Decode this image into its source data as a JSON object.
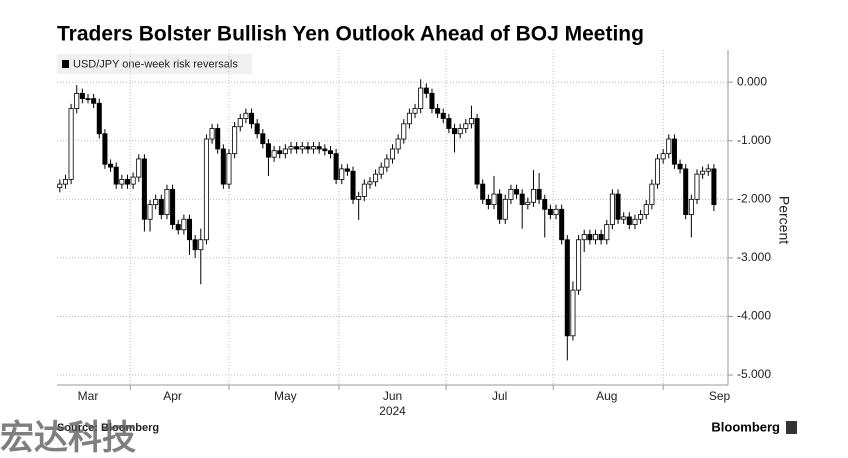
{
  "chart_data": {
    "type": "candlestick",
    "title": "Traders Bolster Bullish Yen Outlook Ahead of BOJ Meeting",
    "series": [
      {
        "name": "USD/JPY one-week risk reversals",
        "color": "#000000",
        "open": [
          -1.8,
          -1.74,
          -1.66,
          -0.45,
          -0.19,
          -0.28,
          -0.28,
          -0.36,
          -0.88,
          -1.4,
          -1.45,
          -1.74,
          -1.66,
          -1.74,
          -1.62,
          -1.31,
          -2.34,
          -2.09,
          -2.0,
          -2.26,
          -1.83,
          -2.43,
          -2.52,
          -2.34,
          -2.69,
          -2.86,
          -2.69,
          -0.97,
          -0.79,
          -1.14,
          -1.74,
          -1.22,
          -0.76,
          -0.62,
          -0.53,
          -0.71,
          -0.88,
          -1.05,
          -1.28,
          -1.17,
          -1.22,
          -1.14,
          -1.1,
          -1.14,
          -1.1,
          -1.14,
          -1.1,
          -1.14,
          -1.17,
          -1.22,
          -1.66,
          -1.48,
          -1.52,
          -2.0,
          -1.95,
          -1.74,
          -1.7,
          -1.57,
          -1.45,
          -1.31,
          -1.14,
          -0.97,
          -0.71,
          -0.53,
          -0.45,
          -0.1,
          -0.19,
          -0.45,
          -0.53,
          -0.62,
          -0.79,
          -0.88,
          -0.79,
          -0.71,
          -0.62,
          -1.74,
          -2.0,
          -2.09,
          -1.91,
          -2.34,
          -2.0,
          -1.83,
          -1.91,
          -2.09,
          -2.05,
          -1.83,
          -2.0,
          -2.17,
          -2.26,
          -2.17,
          -2.69,
          -4.33,
          -3.55,
          -2.69,
          -2.6,
          -2.69,
          -2.6,
          -2.69,
          -2.43,
          -1.91,
          -2.34,
          -2.3,
          -2.43,
          -2.34,
          -2.26,
          -2.09,
          -1.74,
          -1.31,
          -1.22,
          -0.97,
          -1.4,
          -1.48,
          -2.26,
          -2.0,
          -1.57,
          -1.52,
          -1.48
        ],
        "high": [
          -1.66,
          -1.58,
          -0.37,
          -0.05,
          -0.11,
          -0.2,
          -0.2,
          -0.28,
          -0.8,
          -1.32,
          -1.37,
          -1.58,
          -1.58,
          -1.54,
          -1.23,
          -1.23,
          -2.01,
          -1.92,
          -1.92,
          -1.75,
          -1.75,
          -2.35,
          -2.26,
          -2.26,
          -2.61,
          -2.5,
          -0.89,
          -0.71,
          -0.71,
          -1.06,
          -1.14,
          -0.68,
          -0.54,
          -0.45,
          -0.45,
          -0.63,
          -0.8,
          -0.97,
          -1.09,
          -1.09,
          -1.06,
          -1.02,
          -1.02,
          -1.02,
          -1.02,
          -1.02,
          -1.02,
          -1.06,
          -1.09,
          -1.14,
          -1.4,
          -1.4,
          -1.44,
          -1.87,
          -1.66,
          -1.62,
          -1.49,
          -1.37,
          -1.23,
          -1.06,
          -0.89,
          -0.63,
          -0.45,
          -0.37,
          0.05,
          -0.02,
          -0.11,
          -0.37,
          -0.45,
          -0.54,
          -0.71,
          -0.71,
          -0.63,
          -0.4,
          -0.54,
          -1.66,
          -1.92,
          -1.6,
          -1.83,
          -1.92,
          -1.75,
          -1.75,
          -1.83,
          -1.97,
          -1.5,
          -1.55,
          -1.92,
          -2.09,
          -2.09,
          -2.09,
          -2.61,
          -3.4,
          -2.61,
          -2.52,
          -2.52,
          -2.52,
          -2.52,
          -2.35,
          -1.83,
          -1.83,
          -2.22,
          -2.22,
          -2.26,
          -2.18,
          -2.01,
          -1.66,
          -1.23,
          -1.14,
          -0.89,
          -0.89,
          -1.32,
          -1.4,
          -1.92,
          -1.49,
          -1.44,
          -1.4,
          -1.4
        ],
        "low": [
          -1.88,
          -1.82,
          -1.74,
          -0.53,
          -0.36,
          -0.36,
          -0.44,
          -0.96,
          -1.48,
          -1.53,
          -1.82,
          -1.82,
          -1.82,
          -1.82,
          -1.7,
          -2.55,
          -2.55,
          -2.17,
          -2.34,
          -2.34,
          -2.51,
          -2.6,
          -2.6,
          -2.95,
          -3.0,
          -3.45,
          -2.77,
          -1.05,
          -1.22,
          -1.82,
          -1.82,
          -1.3,
          -0.84,
          -0.7,
          -0.79,
          -0.96,
          -1.13,
          -1.6,
          -1.36,
          -1.3,
          -1.3,
          -1.22,
          -1.22,
          -1.22,
          -1.22,
          -1.22,
          -1.22,
          -1.25,
          -1.3,
          -1.74,
          -1.74,
          -1.6,
          -2.08,
          -2.35,
          -2.03,
          -1.82,
          -1.78,
          -1.65,
          -1.53,
          -1.39,
          -1.22,
          -1.05,
          -0.79,
          -0.61,
          -0.53,
          -0.27,
          -0.53,
          -0.61,
          -0.7,
          -0.87,
          -1.2,
          -0.96,
          -0.87,
          -0.79,
          -1.82,
          -2.08,
          -2.17,
          -2.17,
          -2.42,
          -2.42,
          -2.08,
          -1.99,
          -2.5,
          -2.17,
          -2.13,
          -2.08,
          -2.65,
          -2.34,
          -2.34,
          -2.77,
          -4.75,
          -4.41,
          -3.63,
          -2.9,
          -2.77,
          -2.77,
          -2.77,
          -2.77,
          -2.51,
          -2.42,
          -2.42,
          -2.51,
          -2.51,
          -2.42,
          -2.34,
          -2.17,
          -1.82,
          -1.39,
          -1.3,
          -1.48,
          -1.56,
          -2.34,
          -2.65,
          -2.08,
          -1.65,
          -1.6,
          -2.2
        ],
        "close": [
          -1.74,
          -1.66,
          -0.45,
          -0.19,
          -0.28,
          -0.28,
          -0.36,
          -0.88,
          -1.4,
          -1.45,
          -1.74,
          -1.66,
          -1.74,
          -1.62,
          -1.31,
          -2.34,
          -2.09,
          -2.0,
          -2.26,
          -1.83,
          -2.43,
          -2.52,
          -2.34,
          -2.69,
          -2.86,
          -2.69,
          -0.97,
          -0.79,
          -1.14,
          -1.74,
          -1.22,
          -0.76,
          -0.62,
          -0.53,
          -0.71,
          -0.88,
          -1.05,
          -1.28,
          -1.17,
          -1.22,
          -1.14,
          -1.1,
          -1.14,
          -1.1,
          -1.14,
          -1.1,
          -1.14,
          -1.17,
          -1.22,
          -1.66,
          -1.48,
          -1.52,
          -2.0,
          -1.95,
          -1.74,
          -1.7,
          -1.57,
          -1.45,
          -1.31,
          -1.14,
          -0.97,
          -0.71,
          -0.53,
          -0.45,
          -0.1,
          -0.19,
          -0.45,
          -0.53,
          -0.62,
          -0.79,
          -0.88,
          -0.79,
          -0.71,
          -0.62,
          -1.74,
          -2.0,
          -2.09,
          -1.91,
          -2.34,
          -2.0,
          -1.83,
          -1.91,
          -2.09,
          -2.05,
          -1.83,
          -2.0,
          -2.17,
          -2.26,
          -2.17,
          -2.69,
          -4.33,
          -3.55,
          -2.69,
          -2.6,
          -2.69,
          -2.6,
          -2.69,
          -2.43,
          -1.91,
          -2.34,
          -2.3,
          -2.43,
          -2.34,
          -2.26,
          -2.09,
          -1.74,
          -1.31,
          -1.22,
          -0.97,
          -1.4,
          -1.48,
          -2.26,
          -2.0,
          -1.57,
          -1.52,
          -1.48,
          -2.09
        ]
      }
    ],
    "xlim": [
      -0.5,
      118.5
    ],
    "xticks": [
      {
        "value": 5,
        "label": "Mar"
      },
      {
        "value": 20,
        "label": "Apr"
      },
      {
        "value": 40,
        "label": "May"
      },
      {
        "value": 59,
        "label": "Jun"
      },
      {
        "value": 78,
        "label": "Jul"
      },
      {
        "value": 97,
        "label": "Aug"
      },
      {
        "value": 117,
        "label": "Sep"
      }
    ],
    "year_label": "2024",
    "ylim": [
      -5.17,
      0.55
    ],
    "yticks": [
      {
        "value": 0,
        "label": "0.000"
      },
      {
        "value": -1,
        "label": "-1.000"
      },
      {
        "value": -2,
        "label": "-2.000"
      },
      {
        "value": -3,
        "label": "-3.000"
      },
      {
        "value": -4,
        "label": "-4.000"
      },
      {
        "value": -5,
        "label": "-5.000"
      }
    ],
    "ylabel": "Percent",
    "grid": true,
    "source": "Source: Bloomberg",
    "brand": "Bloomberg",
    "watermark": "宏达科技"
  }
}
